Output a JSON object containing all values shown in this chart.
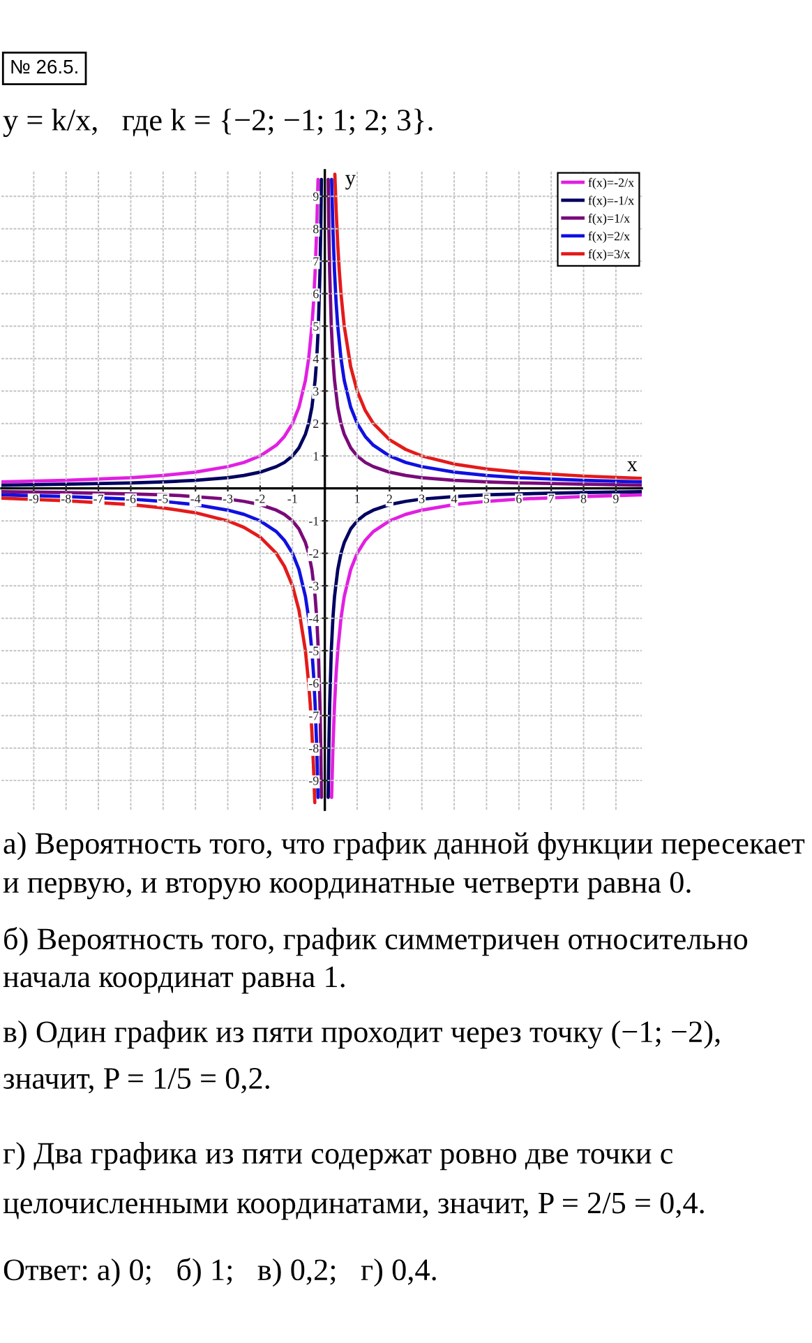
{
  "chart_data": {
    "type": "line",
    "title": "№ 26.5.",
    "subtitle": "y = k/x,   где k = {−2; −1; 1; 2; 3}.",
    "xlabel": "x",
    "ylabel": "y",
    "xlim": [
      -10,
      9.8
    ],
    "ylim": [
      -9.9,
      9.8
    ],
    "xticks": [
      -9,
      -8,
      -7,
      -6,
      -5,
      -4,
      -3,
      -2,
      -1,
      1,
      2,
      3,
      4,
      5,
      6,
      7,
      8,
      9
    ],
    "yticks": [
      -9,
      -8,
      -7,
      -6,
      -5,
      -4,
      -3,
      -2,
      -1,
      1,
      2,
      3,
      4,
      5,
      6,
      7,
      8,
      9
    ],
    "grid": true,
    "legend": "top right",
    "line_style": "solid",
    "series": [
      {
        "name": "f(x)=-2/x",
        "color": "#e21fe2",
        "x": [
          -10,
          -8,
          -6,
          -5,
          -4,
          -3,
          -2.5,
          -2,
          -1.5,
          -1.25,
          -1,
          -0.8,
          -0.6,
          -0.5,
          -0.4,
          -0.35,
          -0.3,
          -0.25,
          -0.21,
          0,
          0.21,
          0.25,
          0.3,
          0.35,
          0.4,
          0.5,
          0.6,
          0.8,
          1,
          1.25,
          1.5,
          2,
          2.5,
          3,
          4,
          5,
          6,
          8,
          9.8
        ],
        "values": [
          0.2,
          0.25,
          0.33,
          0.4,
          0.5,
          0.67,
          0.8,
          1,
          1.33,
          1.6,
          2,
          2.5,
          3.33,
          4,
          5,
          5.71,
          6.67,
          8,
          9.52,
          null,
          -9.52,
          -8,
          -6.67,
          -5.71,
          -5,
          -4,
          -3.33,
          -2.5,
          -2,
          -1.6,
          -1.33,
          -1,
          -0.8,
          -0.67,
          -0.5,
          -0.4,
          -0.33,
          -0.25,
          -0.2
        ]
      },
      {
        "name": "f(x)=-1/x",
        "color": "#000060",
        "x": [
          -10,
          -8,
          -6,
          -5,
          -4,
          -3,
          -2.5,
          -2,
          -1.5,
          -1.25,
          -1,
          -0.8,
          -0.6,
          -0.5,
          -0.4,
          -0.3,
          -0.25,
          -0.2,
          -0.15,
          -0.125,
          -0.105,
          0,
          0.105,
          0.125,
          0.15,
          0.2,
          0.25,
          0.3,
          0.4,
          0.5,
          0.6,
          0.8,
          1,
          1.25,
          1.5,
          2,
          2.5,
          3,
          4,
          5,
          6,
          8,
          9.8
        ],
        "values": [
          0.1,
          0.13,
          0.17,
          0.2,
          0.25,
          0.33,
          0.4,
          0.5,
          0.67,
          0.8,
          1,
          1.25,
          1.67,
          2,
          2.5,
          3.33,
          4,
          5,
          6.67,
          8,
          9.52,
          null,
          -9.52,
          -8,
          -6.67,
          -5,
          -4,
          -3.33,
          -2.5,
          -2,
          -1.67,
          -1.25,
          -1,
          -0.8,
          -0.67,
          -0.5,
          -0.4,
          -0.33,
          -0.25,
          -0.2,
          -0.17,
          -0.13,
          -0.1
        ]
      },
      {
        "name": "f(x)=1/x",
        "color": "#7a0a7a",
        "x": [
          -10,
          -8,
          -6,
          -5,
          -4.5,
          -3,
          -2.5,
          -2,
          -1.5,
          -1.25,
          -1,
          -0.8,
          -0.6,
          -0.5,
          -0.4,
          -0.3,
          -0.25,
          -0.2,
          -0.15,
          -0.125,
          -0.105,
          0,
          0.105,
          0.125,
          0.15,
          0.2,
          0.25,
          0.3,
          0.4,
          0.5,
          0.6,
          0.8,
          1,
          1.25,
          1.5,
          2,
          2.5,
          3,
          4,
          5,
          6,
          8,
          9.8
        ],
        "values": [
          -0.1,
          -0.13,
          -0.17,
          -0.2,
          -0.22,
          -0.33,
          -0.4,
          -0.5,
          -0.67,
          -0.8,
          -1,
          -1.25,
          -1.67,
          -2,
          -2.5,
          -3.33,
          -4,
          -5,
          -6.67,
          -8,
          -9.52,
          null,
          9.52,
          8,
          6.67,
          5,
          4,
          3.33,
          2.5,
          2,
          1.67,
          1.25,
          1,
          0.8,
          0.67,
          0.5,
          0.4,
          0.33,
          0.25,
          0.2,
          0.17,
          0.13,
          0.1
        ]
      },
      {
        "name": "f(x)=2/x",
        "color": "#1010e0",
        "x": [
          -10,
          -8,
          -6,
          -5,
          -4,
          -3,
          -2.5,
          -2,
          -1.5,
          -1.25,
          -1,
          -0.8,
          -0.6,
          -0.5,
          -0.4,
          -0.35,
          -0.3,
          -0.25,
          -0.21,
          0,
          0.21,
          0.25,
          0.3,
          0.35,
          0.4,
          0.5,
          0.6,
          0.8,
          1,
          1.25,
          1.5,
          2,
          2.5,
          3,
          4,
          5,
          6,
          8,
          9.8
        ],
        "values": [
          -0.2,
          -0.25,
          -0.33,
          -0.4,
          -0.5,
          -0.67,
          -0.8,
          -1,
          -1.33,
          -1.6,
          -2,
          -2.5,
          -3.33,
          -4,
          -5,
          -5.71,
          -6.67,
          -8,
          -9.52,
          null,
          9.52,
          8,
          6.67,
          5.71,
          5,
          4,
          3.33,
          2.5,
          2,
          1.6,
          1.33,
          1,
          0.8,
          0.67,
          0.5,
          0.4,
          0.33,
          0.25,
          0.2
        ]
      },
      {
        "name": "f(x)=3/x",
        "color": "#e41a1a",
        "x": [
          -10,
          -8,
          -6,
          -5,
          -4,
          -3,
          -2.5,
          -2,
          -1.5,
          -1.25,
          -1,
          -0.8,
          -0.6,
          -0.5,
          -0.45,
          -0.4,
          -0.35,
          -0.31,
          0,
          0.31,
          0.35,
          0.4,
          0.45,
          0.5,
          0.6,
          0.8,
          1,
          1.25,
          1.5,
          2,
          2.5,
          3,
          4,
          5,
          6,
          8,
          9.8
        ],
        "values": [
          -0.3,
          -0.38,
          -0.5,
          -0.6,
          -0.75,
          -1,
          -1.2,
          -1.5,
          -2,
          -2.4,
          -3,
          -3.75,
          -5,
          -6,
          -6.67,
          -7.5,
          -8.57,
          -9.68,
          null,
          9.68,
          8.57,
          7.5,
          6.67,
          6,
          5,
          3.75,
          3,
          2.4,
          2,
          1.5,
          1.2,
          1,
          0.75,
          0.6,
          0.5,
          0.38,
          0.31
        ]
      }
    ],
    "annotations": [
      "а) Вероятность того, что график данной функции пересекает\nи первую, и вторую координатные четверти равна 0.",
      "б) Вероятность того, график симметричен относительно\nначала координат равна 1.",
      "в) Один график из пяти проходит через точку (−1; −2),\nзначит, P = 1/5 = 0,2.",
      "г) Два графика из пяти содержат ровно две точки с\nцелочисленными координатами, значит, P = 2/5 = 0,4.",
      "Ответ: а) 0;   б) 1;   в) 0,2;   г) 0,4."
    ]
  }
}
